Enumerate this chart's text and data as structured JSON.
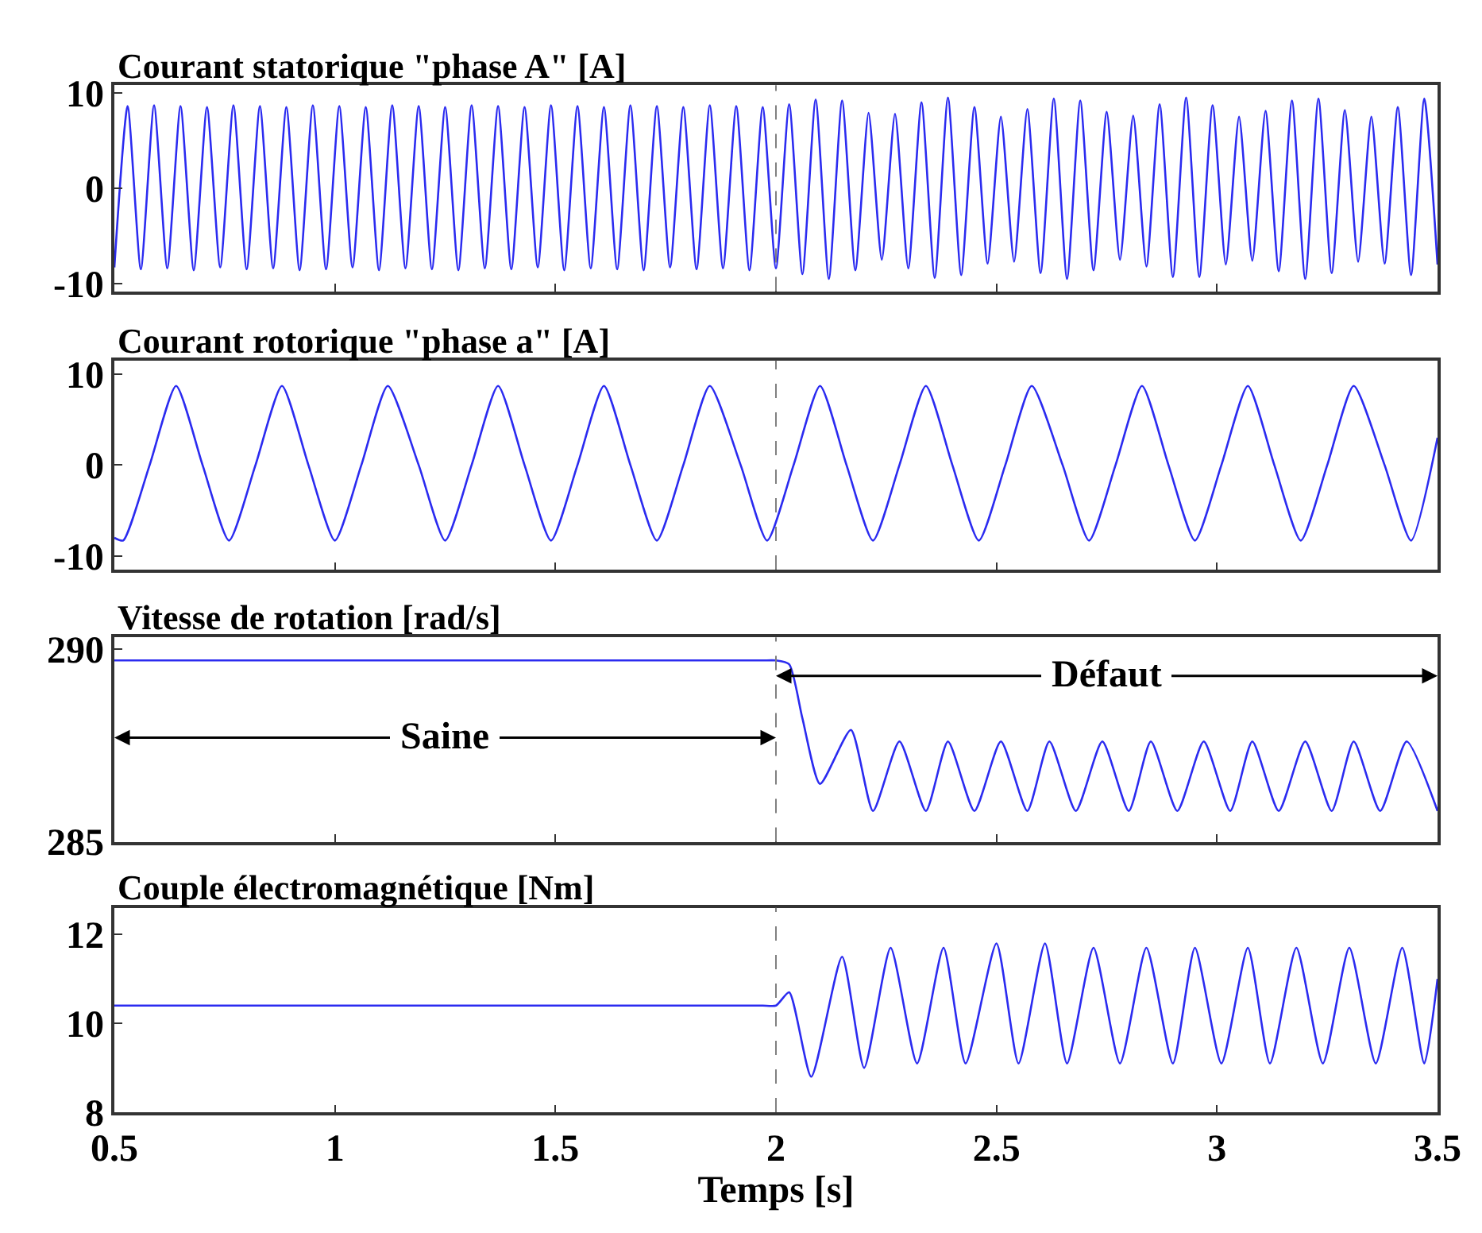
{
  "chart_data": [
    {
      "type": "line",
      "title": "Courant statorique \"phase A\" [A]",
      "xlim": [
        0.5,
        3.5
      ],
      "xticks": [
        0.5,
        1,
        1.5,
        2,
        2.5,
        3,
        3.5
      ],
      "ylim": [
        -10.8,
        10.8
      ],
      "yticks": [
        -10,
        0,
        10
      ],
      "tick_labels": "y",
      "ref_lines": [
        {
          "axis": "x",
          "value": 2,
          "color": "#808080",
          "line_style": "dashed"
        }
      ],
      "series": [
        {
          "color": "#2b2bf0",
          "x": [
            0.5,
            0.53,
            0.56,
            0.59,
            0.62,
            0.65,
            0.68,
            0.71,
            0.74,
            0.77,
            0.8,
            0.83,
            0.86,
            0.89,
            0.92,
            0.95,
            0.98,
            1.01,
            1.04,
            1.07,
            1.1,
            1.13,
            1.16,
            1.19,
            1.22,
            1.25,
            1.28,
            1.31,
            1.34,
            1.37,
            1.4,
            1.43,
            1.46,
            1.49,
            1.52,
            1.55,
            1.58,
            1.61,
            1.64,
            1.67,
            1.7,
            1.73,
            1.76,
            1.79,
            1.82,
            1.85,
            1.88,
            1.91,
            1.94,
            1.97,
            2.0,
            2.03,
            2.06,
            2.09,
            2.12,
            2.15,
            2.18,
            2.21,
            2.24,
            2.27,
            2.3,
            2.33,
            2.36,
            2.39,
            2.42,
            2.45,
            2.48,
            2.51,
            2.54,
            2.57,
            2.6,
            2.63,
            2.66,
            2.69,
            2.72,
            2.75,
            2.78,
            2.81,
            2.84,
            2.87,
            2.9,
            2.93,
            2.96,
            2.99,
            3.02,
            3.05,
            3.08,
            3.11,
            3.14,
            3.17,
            3.2,
            3.23,
            3.26,
            3.29,
            3.32,
            3.35,
            3.38,
            3.41,
            3.44,
            3.47,
            3.5
          ],
          "values": [
            -8.3,
            8.6,
            -8.5,
            8.7,
            -8.4,
            8.6,
            -8.6,
            8.5,
            -8.3,
            8.7,
            -8.5,
            8.6,
            -8.4,
            8.5,
            -8.6,
            8.7,
            -8.5,
            8.6,
            -8.3,
            8.5,
            -8.6,
            8.7,
            -8.4,
            8.6,
            -8.5,
            8.5,
            -8.6,
            8.7,
            -8.4,
            8.6,
            -8.5,
            8.5,
            -8.3,
            8.7,
            -8.6,
            8.6,
            -8.4,
            8.5,
            -8.5,
            8.7,
            -8.6,
            8.6,
            -8.3,
            8.5,
            -8.5,
            8.7,
            -8.4,
            8.6,
            -8.6,
            8.5,
            -8.4,
            8.8,
            -9.0,
            9.3,
            -9.5,
            9.2,
            -8.6,
            7.9,
            -7.5,
            7.8,
            -8.4,
            9.0,
            -9.4,
            9.5,
            -9.1,
            8.5,
            -7.9,
            7.5,
            -7.7,
            8.3,
            -8.9,
            9.4,
            -9.5,
            9.2,
            -8.6,
            8.0,
            -7.5,
            7.6,
            -8.2,
            8.8,
            -9.3,
            9.5,
            -9.3,
            8.7,
            -8.0,
            7.5,
            -7.6,
            8.1,
            -8.7,
            9.2,
            -9.5,
            9.4,
            -8.9,
            8.2,
            -7.7,
            7.5,
            -7.9,
            8.5,
            -9.1,
            9.4,
            -8.0
          ]
        }
      ]
    },
    {
      "type": "line",
      "title": "Courant rotorique \"phase a\" [A]",
      "xlim": [
        0.5,
        3.5
      ],
      "xticks": [
        0.5,
        1,
        1.5,
        2,
        2.5,
        3,
        3.5
      ],
      "ylim": [
        -11.5,
        11.5
      ],
      "yticks": [
        -10,
        0,
        10
      ],
      "tick_labels": "y",
      "ref_lines": [
        {
          "axis": "x",
          "value": 2,
          "color": "#808080",
          "line_style": "dashed"
        }
      ],
      "series": [
        {
          "color": "#2b2bf0",
          "x": [
            0.5,
            0.52,
            0.58,
            0.64,
            0.7,
            0.76,
            0.82,
            0.88,
            0.94,
            1.0,
            1.06,
            1.12,
            1.19,
            1.25,
            1.31,
            1.37,
            1.43,
            1.49,
            1.55,
            1.61,
            1.67,
            1.73,
            1.79,
            1.85,
            1.92,
            1.98,
            2.04,
            2.1,
            2.16,
            2.22,
            2.28,
            2.34,
            2.4,
            2.46,
            2.52,
            2.58,
            2.65,
            2.71,
            2.77,
            2.83,
            2.89,
            2.95,
            3.01,
            3.07,
            3.13,
            3.19,
            3.25,
            3.31,
            3.38,
            3.44,
            3.5
          ],
          "values": [
            -8.0,
            -8.3,
            0,
            8.7,
            0,
            -8.3,
            0,
            8.7,
            0,
            -8.3,
            0,
            8.7,
            0,
            -8.3,
            0,
            8.7,
            0,
            -8.3,
            0,
            8.7,
            0,
            -8.3,
            0,
            8.7,
            0,
            -8.3,
            0,
            8.7,
            0,
            -8.3,
            0,
            8.7,
            0,
            -8.3,
            0,
            8.7,
            0,
            -8.3,
            0,
            8.7,
            0,
            -8.3,
            0,
            8.7,
            0,
            -8.3,
            0,
            8.7,
            0,
            -8.3,
            3.0
          ]
        }
      ]
    },
    {
      "type": "line",
      "title": "Vitesse de rotation [rad/s]",
      "xlim": [
        0.5,
        3.5
      ],
      "xticks": [
        0.5,
        1,
        1.5,
        2,
        2.5,
        3,
        3.5
      ],
      "ylim": [
        285,
        290.3
      ],
      "yticks": [
        285,
        290
      ],
      "tick_labels": "y",
      "ref_lines": [
        {
          "axis": "x",
          "value": 2,
          "color": "#808080",
          "line_style": "dashed"
        }
      ],
      "annotations": [
        {
          "text": "Saine",
          "x": 2,
          "y": 287.7
        },
        {
          "text": "Défaut",
          "x": 2,
          "y": 289.3
        }
      ],
      "series": [
        {
          "color": "#2b2bf0",
          "x": [
            0.5,
            1.0,
            1.5,
            1.9,
            1.97,
            2.0,
            2.03,
            2.06,
            2.1,
            2.17,
            2.22,
            2.28,
            2.34,
            2.39,
            2.45,
            2.51,
            2.57,
            2.62,
            2.68,
            2.74,
            2.8,
            2.85,
            2.91,
            2.97,
            3.03,
            3.08,
            3.14,
            3.2,
            3.26,
            3.31,
            3.37,
            3.43,
            3.5
          ],
          "values": [
            289.7,
            289.7,
            289.7,
            289.7,
            289.7,
            289.7,
            289.6,
            288.2,
            286.5,
            287.9,
            285.8,
            287.6,
            285.8,
            287.6,
            285.8,
            287.6,
            285.8,
            287.6,
            285.8,
            287.6,
            285.8,
            287.6,
            285.8,
            287.6,
            285.8,
            287.6,
            285.8,
            287.6,
            285.8,
            287.6,
            285.8,
            287.6,
            285.8
          ]
        }
      ]
    },
    {
      "type": "line",
      "title": "Couple électromagnétique [Nm]",
      "xlabel": "Temps [s]",
      "xlim": [
        0.5,
        3.5
      ],
      "xticks": [
        0.5,
        1,
        1.5,
        2,
        2.5,
        3,
        3.5
      ],
      "ylim": [
        8,
        12.6
      ],
      "yticks": [
        8,
        10,
        12
      ],
      "ref_lines": [
        {
          "axis": "x",
          "value": 2,
          "color": "#808080",
          "line_style": "dashed"
        }
      ],
      "series": [
        {
          "color": "#2b2bf0",
          "x": [
            0.5,
            1.0,
            1.5,
            1.9,
            1.97,
            2.0,
            2.03,
            2.08,
            2.15,
            2.2,
            2.26,
            2.32,
            2.38,
            2.43,
            2.5,
            2.55,
            2.61,
            2.66,
            2.72,
            2.78,
            2.84,
            2.9,
            2.95,
            3.01,
            3.07,
            3.12,
            3.18,
            3.24,
            3.3,
            3.36,
            3.42,
            3.47,
            3.5
          ],
          "values": [
            10.4,
            10.4,
            10.4,
            10.4,
            10.4,
            10.4,
            10.7,
            8.8,
            11.5,
            9.0,
            11.7,
            9.1,
            11.7,
            9.1,
            11.8,
            9.1,
            11.8,
            9.1,
            11.7,
            9.1,
            11.7,
            9.1,
            11.7,
            9.1,
            11.7,
            9.1,
            11.7,
            9.1,
            11.7,
            9.1,
            11.7,
            9.1,
            11.0
          ]
        }
      ]
    }
  ]
}
